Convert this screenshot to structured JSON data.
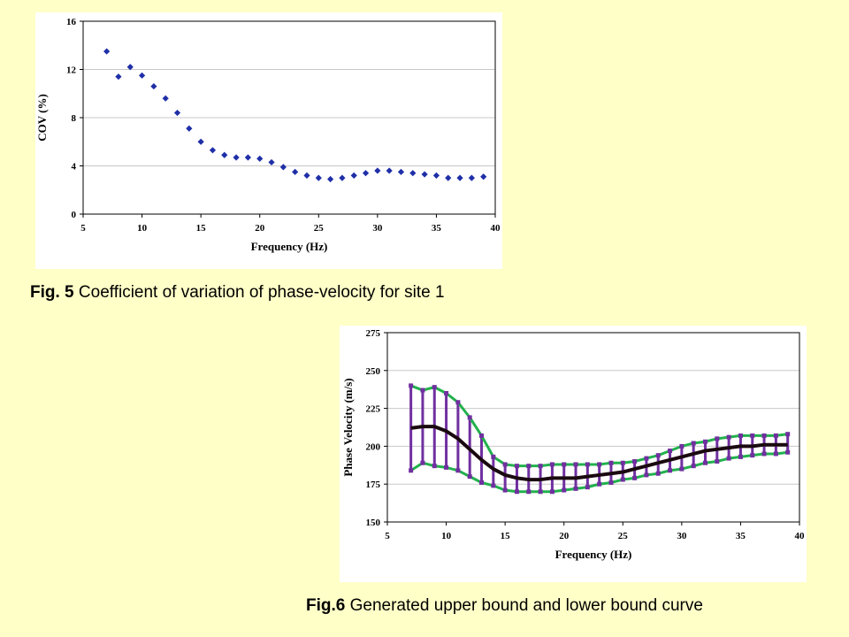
{
  "captions": {
    "fig5_label": "Fig. 5",
    "fig5_text": " Coefficient of variation of phase-velocity for site 1",
    "fig6_label": "Fig.6",
    "fig6_text": " Generated upper bound and lower bound curve"
  },
  "colors": {
    "background": "#ffffc8",
    "marker_blue": "#1f2fa8",
    "bound_green": "#22b14c",
    "error_bar_purple": "#7030a0",
    "mean_curve": "#1a0a10",
    "grid": "#c8c8c8"
  },
  "chart_data": [
    {
      "type": "scatter",
      "xlabel": "Frequency (Hz)",
      "ylabel": "COV (%)",
      "xlim": [
        5,
        40
      ],
      "ylim": [
        0,
        16
      ],
      "xticks": [
        5,
        10,
        15,
        20,
        25,
        30,
        35,
        40
      ],
      "yticks": [
        0,
        4,
        8,
        12,
        16
      ],
      "grid": "horizontal",
      "marker": "diamond",
      "x": [
        7,
        8,
        9,
        10,
        11,
        12,
        13,
        14,
        15,
        16,
        17,
        18,
        19,
        20,
        21,
        22,
        23,
        24,
        25,
        26,
        27,
        28,
        29,
        30,
        31,
        32,
        33,
        34,
        35,
        36,
        37,
        38,
        39
      ],
      "y": [
        13.5,
        11.4,
        12.2,
        11.5,
        10.6,
        9.6,
        8.4,
        7.1,
        6.0,
        5.3,
        4.9,
        4.7,
        4.7,
        4.6,
        4.3,
        3.9,
        3.5,
        3.2,
        3.0,
        2.9,
        3.0,
        3.2,
        3.4,
        3.6,
        3.6,
        3.5,
        3.4,
        3.3,
        3.2,
        3.0,
        3.0,
        3.0,
        3.1
      ]
    },
    {
      "type": "line",
      "xlabel": "Frequency (Hz)",
      "ylabel": "Phase Velocity (m/s)",
      "xlim": [
        5,
        40
      ],
      "ylim": [
        150,
        275
      ],
      "xticks": [
        5,
        10,
        15,
        20,
        25,
        30,
        35,
        40
      ],
      "yticks": [
        150,
        175,
        200,
        225,
        250,
        275
      ],
      "grid": "horizontal",
      "x": [
        7,
        8,
        9,
        10,
        11,
        12,
        13,
        14,
        15,
        16,
        17,
        18,
        19,
        20,
        21,
        22,
        23,
        24,
        25,
        26,
        27,
        28,
        29,
        30,
        31,
        32,
        33,
        34,
        35,
        36,
        37,
        38,
        39
      ],
      "series": [
        {
          "role": "upper",
          "values": [
            240,
            237,
            239,
            235,
            229,
            219,
            207,
            193,
            188,
            187,
            187,
            187,
            188,
            188,
            188,
            188,
            188,
            189,
            189,
            190,
            192,
            194,
            197,
            200,
            202,
            203,
            205,
            206,
            207,
            207,
            207,
            207,
            208
          ]
        },
        {
          "role": "mean",
          "values": [
            212,
            213,
            213,
            210,
            205,
            198,
            191,
            185,
            181,
            179,
            178,
            178,
            179,
            179,
            179,
            180,
            181,
            182,
            183,
            185,
            187,
            189,
            191,
            193,
            195,
            197,
            198,
            199,
            200,
            200,
            201,
            201,
            201
          ]
        },
        {
          "role": "lower",
          "values": [
            184,
            189,
            187,
            186,
            184,
            180,
            176,
            174,
            171,
            170,
            170,
            170,
            170,
            171,
            172,
            173,
            175,
            176,
            178,
            179,
            181,
            182,
            184,
            185,
            187,
            189,
            190,
            192,
            193,
            194,
            195,
            195,
            196
          ]
        }
      ]
    }
  ]
}
